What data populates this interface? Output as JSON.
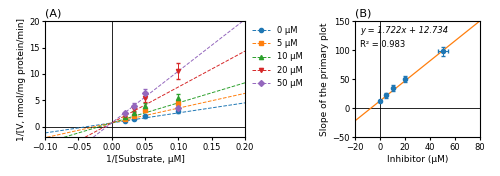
{
  "chart_data": [
    {
      "type": "scatter",
      "title": "(A)",
      "xlabel": "1/[Substrate, μM]",
      "ylabel": "1/[V, nmol/mg protein/min]",
      "xlim": [
        -0.1,
        0.2
      ],
      "ylim": [
        -2,
        20
      ],
      "xticks": [
        {
          "value": -0.1,
          "label": "−0.10"
        },
        {
          "value": -0.05,
          "label": "−0.05"
        },
        {
          "value": 0.0,
          "label": "0.00"
        },
        {
          "value": 0.05,
          "label": "0.05"
        },
        {
          "value": 0.1,
          "label": "0.10"
        },
        {
          "value": 0.15,
          "label": "0.15"
        },
        {
          "value": 0.2,
          "label": "0.20"
        }
      ],
      "yticks": [
        0,
        5,
        10,
        15,
        20
      ],
      "x": [
        0.02,
        0.033,
        0.05,
        0.1
      ],
      "series": [
        {
          "name": "0 μM",
          "marker": "circle",
          "values": [
            1.1,
            1.5,
            2.0,
            3.0
          ],
          "yerr": [
            0.1,
            0.2,
            0.3,
            0.4
          ],
          "fit": {
            "slope": 19.0,
            "intercept": 0.72
          }
        },
        {
          "name": "5 μM",
          "marker": "square",
          "values": [
            1.5,
            2.1,
            3.1,
            4.5
          ],
          "yerr": [
            0.1,
            0.3,
            0.3,
            0.5
          ],
          "fit": {
            "slope": 28.0,
            "intercept": 0.72
          }
        },
        {
          "name": "10 μM",
          "marker": "triangle_up",
          "values": [
            1.8,
            2.6,
            3.9,
            5.5
          ],
          "yerr": [
            0.15,
            0.35,
            0.5,
            0.7
          ],
          "fit": {
            "slope": 38.0,
            "intercept": 0.72
          }
        },
        {
          "name": "20 μM",
          "marker": "triangle_down",
          "values": [
            2.2,
            3.3,
            5.4,
            10.5
          ],
          "yerr": [
            0.2,
            0.45,
            0.8,
            1.5
          ],
          "fit": {
            "slope": 68.0,
            "intercept": 0.72
          }
        },
        {
          "name": "50 μM",
          "marker": "diamond",
          "values": [
            2.6,
            4.0,
            6.3,
            3.5
          ],
          "yerr": [
            0.25,
            0.5,
            0.9,
            0.5
          ],
          "fit": {
            "slope": 98.0,
            "intercept": 0.72
          }
        }
      ]
    },
    {
      "type": "scatter",
      "title": "(B)",
      "xlabel": "Inhibitor (μM)",
      "ylabel": "Slope of the primary plot",
      "xlim": [
        -20,
        80
      ],
      "ylim": [
        -50,
        150
      ],
      "xticks": [
        {
          "value": -20,
          "label": "−20"
        },
        0,
        20,
        40,
        60,
        80
      ],
      "yticks": [
        {
          "value": -50,
          "label": "−50"
        },
        0,
        50,
        100,
        150
      ],
      "x": [
        0,
        5,
        10,
        20,
        50
      ],
      "series": [
        {
          "marker": "circle",
          "values": [
            13,
            22,
            35,
            50,
            98
          ],
          "xerr": [
            0,
            0,
            0,
            0,
            4
          ],
          "yerr": [
            2,
            5,
            5,
            5,
            8
          ],
          "fit": {
            "slope": 1.722,
            "intercept": 12.734
          }
        }
      ],
      "annotations": [
        "y = 1.722x + 12.734",
        "R² = 0.983"
      ]
    }
  ]
}
